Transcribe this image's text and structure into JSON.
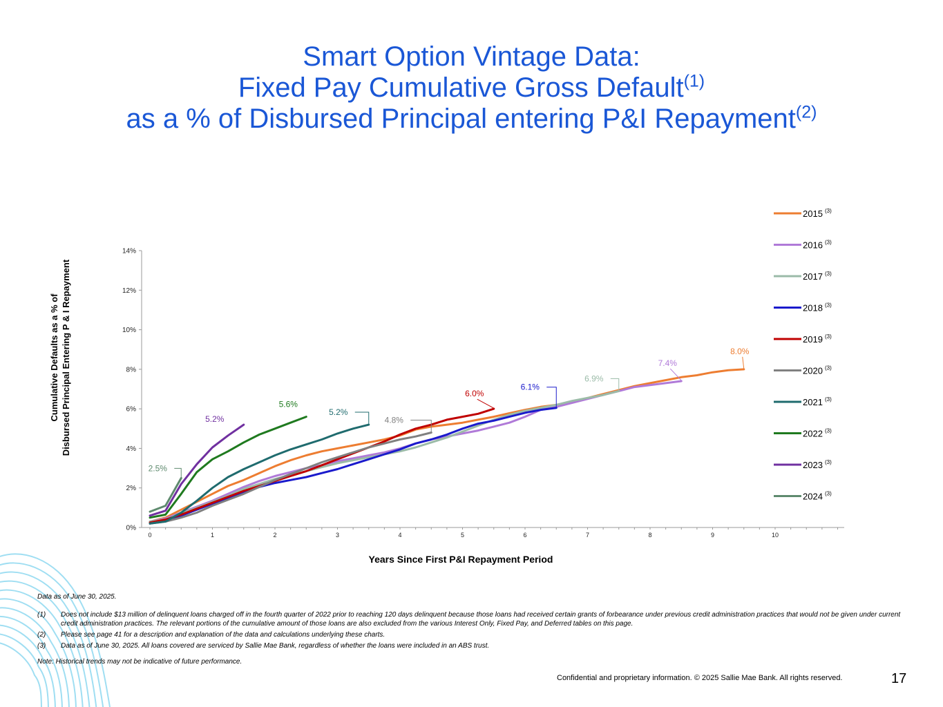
{
  "title": {
    "line1": "Smart Option Vintage Data:",
    "line2": "Fixed Pay Cumulative Gross Default",
    "line2_sup": "(1)",
    "line3": "as a % of Disbursed Principal entering P&I Repayment",
    "line3_sup": "(2)"
  },
  "colors": {
    "title": "#1a57d6",
    "2015": "#ed7d31",
    "2016": "#b07ad8",
    "2017": "#9bbba8",
    "2018": "#1a1acc",
    "2019": "#c00000",
    "2020": "#808080",
    "2021": "#1f6b6e",
    "2022": "#1f7a1f",
    "2023": "#7030a0",
    "2024": "#5e8a6e"
  },
  "chart_data": {
    "type": "line",
    "ylabel_line1": "Cumulative Defaults as a % of",
    "ylabel_line2": "Disbursed Principal  Entering P & I Repayment",
    "xlabel": "Years Since First P&I Repayment Period",
    "xlim": [
      0,
      11.2
    ],
    "ylim": [
      0,
      14
    ],
    "y_ticks": [
      "0%",
      "2%",
      "4%",
      "6%",
      "8%",
      "10%",
      "12%",
      "14%"
    ],
    "x_ticks": [
      "0",
      "1",
      "2",
      "3",
      "4",
      "5",
      "6",
      "7",
      "8",
      "9",
      "10"
    ],
    "legend_position": "right",
    "series": [
      {
        "name": "2015",
        "sup": "(3)",
        "end_label": "8.0%",
        "x": [
          0,
          0.25,
          0.5,
          0.75,
          1,
          1.25,
          1.5,
          1.75,
          2,
          2.25,
          2.5,
          2.75,
          3,
          3.25,
          3.5,
          3.75,
          4,
          4.25,
          4.5,
          4.75,
          5,
          5.25,
          5.5,
          5.75,
          6,
          6.25,
          6.5,
          6.75,
          7,
          7.25,
          7.5,
          7.75,
          8,
          8.25,
          8.5,
          8.75,
          9,
          9.25,
          9.5
        ],
        "y": [
          0.3,
          0.5,
          0.9,
          1.3,
          1.7,
          2.1,
          2.4,
          2.75,
          3.1,
          3.4,
          3.65,
          3.85,
          4.0,
          4.15,
          4.3,
          4.45,
          4.65,
          4.95,
          5.1,
          5.2,
          5.3,
          5.45,
          5.6,
          5.78,
          5.95,
          6.1,
          6.2,
          6.35,
          6.55,
          6.75,
          6.95,
          7.15,
          7.3,
          7.45,
          7.6,
          7.7,
          7.85,
          7.95,
          8.0
        ]
      },
      {
        "name": "2016",
        "sup": "(3)",
        "end_label": "7.4%",
        "x": [
          0,
          0.25,
          0.5,
          0.75,
          1,
          1.25,
          1.5,
          1.75,
          2,
          2.25,
          2.5,
          2.75,
          3,
          3.25,
          3.5,
          3.75,
          4,
          4.25,
          4.5,
          4.75,
          5,
          5.25,
          5.5,
          5.75,
          6,
          6.25,
          6.5,
          6.75,
          7,
          7.25,
          7.5,
          7.75,
          8,
          8.25,
          8.5
        ],
        "y": [
          0.3,
          0.45,
          0.75,
          1.05,
          1.35,
          1.7,
          2.05,
          2.35,
          2.6,
          2.8,
          3.0,
          3.15,
          3.35,
          3.5,
          3.65,
          3.8,
          4.0,
          4.25,
          4.45,
          4.6,
          4.75,
          4.9,
          5.1,
          5.3,
          5.6,
          5.95,
          6.1,
          6.3,
          6.5,
          6.7,
          6.9,
          7.1,
          7.2,
          7.3,
          7.4
        ]
      },
      {
        "name": "2017",
        "sup": "(3)",
        "end_label": "6.9%",
        "x": [
          0,
          0.25,
          0.5,
          0.75,
          1,
          1.25,
          1.5,
          1.75,
          2,
          2.25,
          2.5,
          2.75,
          3,
          3.25,
          3.5,
          3.75,
          4,
          4.25,
          4.5,
          4.75,
          5,
          5.25,
          5.5,
          5.75,
          6,
          6.25,
          6.5,
          6.75,
          7,
          7.25,
          7.5
        ],
        "y": [
          0.3,
          0.4,
          0.7,
          1.0,
          1.3,
          1.6,
          1.95,
          2.2,
          2.45,
          2.65,
          2.85,
          3.05,
          3.25,
          3.4,
          3.55,
          3.7,
          3.85,
          4.05,
          4.3,
          4.55,
          4.85,
          5.15,
          5.45,
          5.7,
          5.9,
          6.05,
          6.2,
          6.4,
          6.55,
          6.7,
          6.9
        ]
      },
      {
        "name": "2018",
        "sup": "(3)",
        "end_label": "6.1%",
        "x": [
          0,
          0.25,
          0.5,
          0.75,
          1,
          1.25,
          1.5,
          1.75,
          2,
          2.25,
          2.5,
          2.75,
          3,
          3.25,
          3.5,
          3.75,
          4,
          4.25,
          4.5,
          4.75,
          5,
          5.25,
          5.5,
          5.75,
          6,
          6.25,
          6.5
        ],
        "y": [
          0.2,
          0.35,
          0.6,
          0.9,
          1.2,
          1.5,
          1.8,
          2.05,
          2.25,
          2.4,
          2.55,
          2.75,
          2.95,
          3.2,
          3.45,
          3.7,
          3.95,
          4.25,
          4.45,
          4.7,
          5.0,
          5.25,
          5.4,
          5.6,
          5.8,
          5.95,
          6.05
        ]
      },
      {
        "name": "2019",
        "sup": "(3)",
        "end_label": "6.0%",
        "x": [
          0,
          0.25,
          0.5,
          0.75,
          1,
          1.25,
          1.5,
          1.75,
          2,
          2.25,
          2.5,
          2.75,
          3,
          3.25,
          3.5,
          3.75,
          4,
          4.25,
          4.5,
          4.75,
          5,
          5.25,
          5.5
        ],
        "y": [
          0.25,
          0.4,
          0.65,
          0.95,
          1.25,
          1.55,
          1.85,
          2.1,
          2.35,
          2.6,
          2.85,
          3.15,
          3.45,
          3.75,
          4.05,
          4.35,
          4.7,
          5.0,
          5.2,
          5.45,
          5.6,
          5.75,
          6.0
        ]
      },
      {
        "name": "2020",
        "sup": "(3)",
        "end_label": "4.8%",
        "x": [
          0,
          0.25,
          0.5,
          0.75,
          1,
          1.25,
          1.5,
          1.75,
          2,
          2.25,
          2.5,
          2.75,
          3,
          3.25,
          3.5,
          3.75,
          4,
          4.25,
          4.5
        ],
        "y": [
          0.2,
          0.3,
          0.5,
          0.75,
          1.1,
          1.4,
          1.7,
          2.05,
          2.4,
          2.7,
          3.0,
          3.3,
          3.55,
          3.8,
          4.05,
          4.25,
          4.45,
          4.6,
          4.8
        ]
      },
      {
        "name": "2021",
        "sup": "(3)",
        "end_label": "5.2%",
        "x": [
          0,
          0.25,
          0.5,
          0.75,
          1,
          1.25,
          1.5,
          1.75,
          2,
          2.25,
          2.5,
          2.75,
          3,
          3.25,
          3.5
        ],
        "y": [
          0.2,
          0.3,
          0.75,
          1.35,
          2.0,
          2.55,
          2.95,
          3.3,
          3.65,
          3.95,
          4.2,
          4.45,
          4.75,
          5.0,
          5.2
        ]
      },
      {
        "name": "2022",
        "sup": "(3)",
        "end_label": "5.6%",
        "x": [
          0,
          0.25,
          0.5,
          0.75,
          1,
          1.25,
          1.5,
          1.75,
          2,
          2.25,
          2.5
        ],
        "y": [
          0.5,
          0.65,
          1.7,
          2.8,
          3.45,
          3.85,
          4.3,
          4.7,
          5.0,
          5.3,
          5.6
        ]
      },
      {
        "name": "2023",
        "sup": "(3)",
        "end_label": "5.2%",
        "x": [
          0,
          0.25,
          0.5,
          0.75,
          1,
          1.25,
          1.5
        ],
        "y": [
          0.6,
          0.85,
          2.2,
          3.2,
          4.05,
          4.65,
          5.2
        ]
      },
      {
        "name": "2024",
        "sup": "(3)",
        "end_label": "2.5%",
        "x": [
          0,
          0.25,
          0.5
        ],
        "y": [
          0.8,
          1.1,
          2.5
        ]
      }
    ]
  },
  "footnotes": {
    "as_of": "Data as of June 30, 2025.",
    "items": [
      {
        "num": "(1)",
        "text": "Does not include $13 million of delinquent loans charged off in the fourth quarter of 2022 prior to reaching 120 days delinquent because those loans had received certain grants of forbearance under previous credit administration practices that would not be given under current credit administration practices. The relevant portions of the cumulative amount of those loans are also excluded from the various Interest Only, Fixed Pay, and Deferred tables on this page."
      },
      {
        "num": "(2)",
        "text": "Please see page 41 for a description and explanation of the data and calculations underlying these charts."
      },
      {
        "num": "(3)",
        "text": "Data as of  June 30, 2025. All loans covered are serviced by Sallie Mae Bank, regardless of whether the loans were included in an ABS trust."
      }
    ],
    "note": "Note: Historical trends may not be indicative of future performance."
  },
  "footer": {
    "confidential": "Confidential and proprietary information. © 2025 Sallie Mae Bank. All rights reserved.",
    "page_number": "17"
  }
}
